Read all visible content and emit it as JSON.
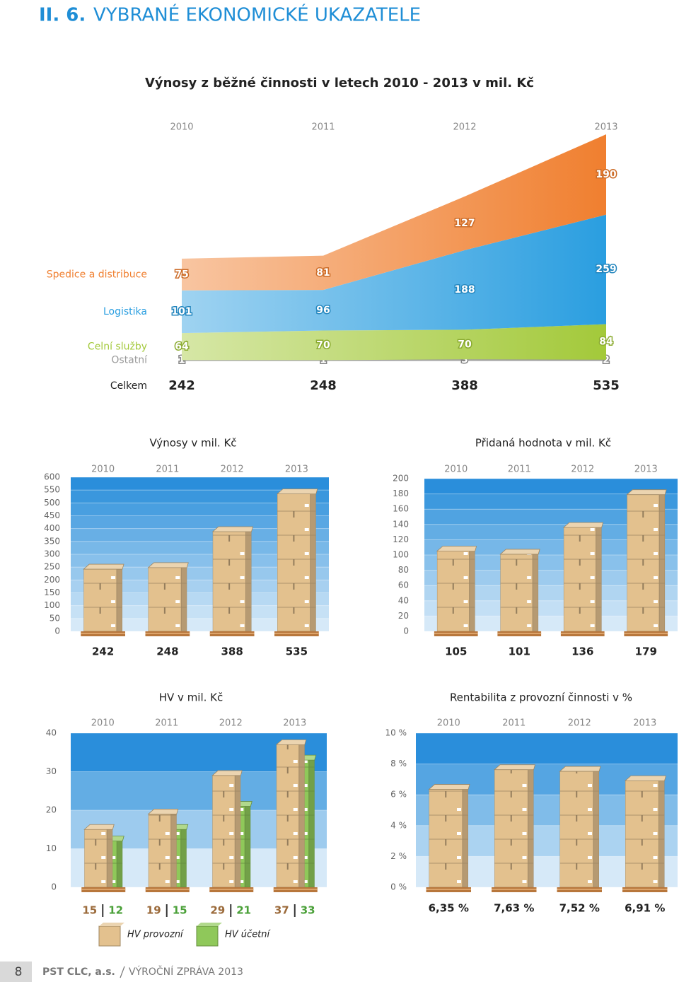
{
  "header": {
    "number": "II. 6.",
    "title": "VYBRANÉ EKONOMICKÉ UKAZATELE"
  },
  "chart_data": [
    {
      "type": "area",
      "title": "Výnosy z běžné činnosti v letech 2010 - 2013 v mil. Kč",
      "categories": [
        "2010",
        "2011",
        "2012",
        "2013"
      ],
      "series": [
        {
          "name": "Spedice a distribuce",
          "color": "#f07f2f",
          "values": [
            75,
            81,
            127,
            190
          ]
        },
        {
          "name": "Logistika",
          "color": "#2a9ee0",
          "values": [
            101,
            96,
            188,
            259
          ]
        },
        {
          "name": "Celní služby",
          "color": "#a3c93a",
          "values": [
            64,
            70,
            70,
            84
          ]
        },
        {
          "name": "Ostatní",
          "color": "#9a9a9a",
          "values": [
            1,
            1,
            3,
            2
          ]
        }
      ],
      "total_label": "Celkem",
      "totals": [
        242,
        248,
        388,
        535
      ]
    },
    {
      "type": "bar",
      "title": "Výnosy v mil. Kč",
      "categories": [
        "2010",
        "2011",
        "2012",
        "2013"
      ],
      "values": [
        242,
        248,
        388,
        535
      ],
      "color": "#e3c18e",
      "ylim": [
        0,
        600
      ],
      "yticks": [
        0,
        50,
        100,
        150,
        200,
        250,
        300,
        350,
        400,
        450,
        500,
        550,
        600
      ],
      "grid": true
    },
    {
      "type": "bar",
      "title": "Přidaná hodnota v mil. Kč",
      "categories": [
        "2010",
        "2011",
        "2012",
        "2013"
      ],
      "values": [
        105,
        101,
        136,
        179
      ],
      "color": "#e3c18e",
      "ylim": [
        0,
        200
      ],
      "yticks": [
        0,
        20,
        40,
        60,
        80,
        100,
        120,
        140,
        160,
        180,
        200
      ],
      "grid": true
    },
    {
      "type": "grouped_bar",
      "title": "HV v mil. Kč",
      "categories": [
        "2010",
        "2011",
        "2012",
        "2013"
      ],
      "series": [
        {
          "name": "HV provozní",
          "color": "#e3c18e",
          "label_color": "#9b6a3a",
          "values": [
            15,
            19,
            29,
            37
          ]
        },
        {
          "name": "HV účetní",
          "color": "#8fc85a",
          "label_color": "#4aa038",
          "values": [
            12,
            15,
            21,
            33
          ]
        }
      ],
      "ylim": [
        0,
        40
      ],
      "yticks": [
        0,
        10,
        20,
        30,
        40
      ],
      "grid": true
    },
    {
      "type": "bar",
      "title": "Rentabilita z provozní činnosti v %",
      "categories": [
        "2010",
        "2011",
        "2012",
        "2013"
      ],
      "values": [
        6.35,
        7.63,
        7.52,
        6.91
      ],
      "value_labels": [
        "6,35 %",
        "7,63 %",
        "7,52 %",
        "6,91 %"
      ],
      "color": "#e3c18e",
      "ylim": [
        0,
        10
      ],
      "yticks": [
        {
          "value": 0,
          "label": "0 %"
        },
        {
          "value": 2,
          "label": "2 %"
        },
        {
          "value": 4,
          "label": "4 %"
        },
        {
          "value": 6,
          "label": "6 %"
        },
        {
          "value": 8,
          "label": "8 %"
        },
        {
          "value": 10,
          "label": "10 %"
        }
      ],
      "grid": true
    }
  ],
  "footer": {
    "page": "8",
    "company": "PST CLC, a.s.",
    "report": "VÝROČNÍ ZPRÁVA 2013"
  }
}
